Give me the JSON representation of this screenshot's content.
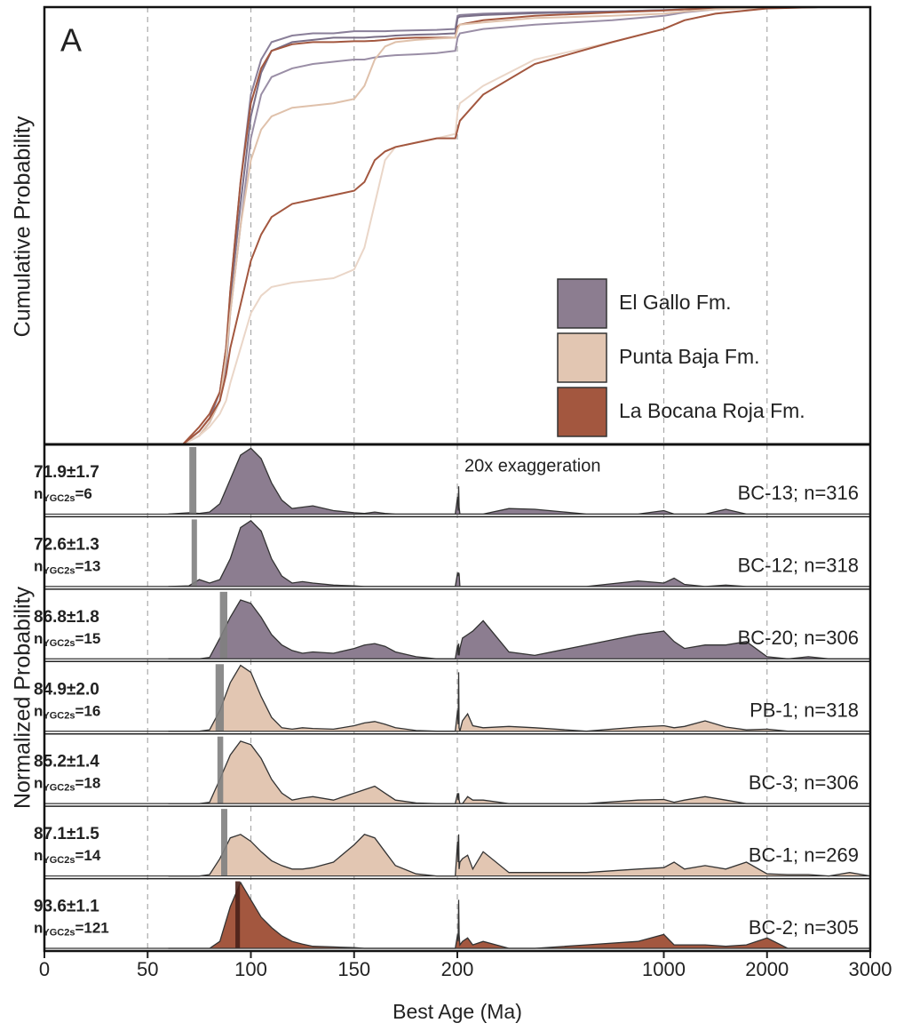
{
  "chart_data": [
    {
      "type": "line",
      "panel_label": "A",
      "ylabel": "Cumulative Probability",
      "xlim": [
        0,
        3000
      ],
      "xticks": [
        0,
        50,
        100,
        150,
        200,
        1000,
        2000,
        3000
      ],
      "x_scale": "piecewise",
      "ylim": [
        0,
        1
      ],
      "grid": true,
      "legend_loc": "lower right",
      "legend": [
        {
          "name": "El Gallo Fm.",
          "color": "#8c7d90"
        },
        {
          "name": "Punta Baja Fm.",
          "color": "#e2c6b2"
        },
        {
          "name": "La Bocana Roja Fm.",
          "color": "#a3573f"
        }
      ],
      "x": [
        67,
        75,
        80,
        85,
        88,
        90,
        95,
        100,
        105,
        110,
        120,
        130,
        140,
        150,
        155,
        160,
        165,
        170,
        180,
        190,
        199,
        201,
        210,
        300,
        500,
        800,
        1000,
        1200,
        1500,
        2000,
        2500,
        3000
      ],
      "curves": [
        {
          "color": "#8a7f99",
          "values": [
            0,
            0.02,
            0.05,
            0.1,
            0.2,
            0.35,
            0.6,
            0.8,
            0.88,
            0.92,
            0.935,
            0.94,
            0.94,
            0.945,
            0.945,
            0.945,
            0.945,
            0.946,
            0.947,
            0.948,
            0.95,
            0.98,
            0.982,
            0.985,
            0.988,
            0.99,
            0.993,
            0.995,
            0.997,
            0.999,
            1,
            1
          ]
        },
        {
          "color": "#7a6f88",
          "values": [
            0,
            0.03,
            0.06,
            0.12,
            0.22,
            0.33,
            0.55,
            0.75,
            0.85,
            0.9,
            0.92,
            0.925,
            0.93,
            0.93,
            0.93,
            0.932,
            0.933,
            0.935,
            0.937,
            0.938,
            0.94,
            0.975,
            0.978,
            0.982,
            0.986,
            0.99,
            0.993,
            0.995,
            0.997,
            0.999,
            1,
            1
          ]
        },
        {
          "color": "#a3573f",
          "values": [
            0,
            0.04,
            0.07,
            0.12,
            0.22,
            0.35,
            0.6,
            0.78,
            0.86,
            0.9,
            0.915,
            0.92,
            0.92,
            0.922,
            0.922,
            0.923,
            0.925,
            0.928,
            0.93,
            0.93,
            0.93,
            0.955,
            0.96,
            0.97,
            0.98,
            0.988,
            0.992,
            0.995,
            0.997,
            0.999,
            1,
            1
          ]
        },
        {
          "color": "#9a8ea6",
          "values": [
            0,
            0.02,
            0.05,
            0.1,
            0.18,
            0.3,
            0.5,
            0.7,
            0.8,
            0.84,
            0.86,
            0.87,
            0.875,
            0.88,
            0.88,
            0.885,
            0.888,
            0.89,
            0.892,
            0.895,
            0.9,
            0.93,
            0.94,
            0.95,
            0.96,
            0.97,
            0.98,
            0.988,
            0.995,
            0.999,
            1,
            1
          ]
        },
        {
          "color": "#dfc1ab",
          "values": [
            0,
            0.02,
            0.05,
            0.1,
            0.2,
            0.3,
            0.5,
            0.65,
            0.72,
            0.75,
            0.77,
            0.775,
            0.78,
            0.79,
            0.82,
            0.88,
            0.91,
            0.92,
            0.925,
            0.928,
            0.93,
            0.95,
            0.96,
            0.965,
            0.975,
            0.98,
            0.985,
            0.99,
            0.995,
            0.999,
            1,
            1
          ]
        },
        {
          "color": "#ead6c8",
          "values": [
            0,
            0.02,
            0.04,
            0.07,
            0.1,
            0.14,
            0.22,
            0.3,
            0.34,
            0.36,
            0.37,
            0.375,
            0.38,
            0.4,
            0.45,
            0.55,
            0.65,
            0.68,
            0.69,
            0.7,
            0.71,
            0.76,
            0.78,
            0.82,
            0.88,
            0.92,
            0.95,
            0.97,
            0.985,
            0.997,
            1,
            1
          ]
        },
        {
          "color": "#a3573f",
          "values": [
            0,
            0.03,
            0.06,
            0.1,
            0.16,
            0.22,
            0.32,
            0.42,
            0.48,
            0.52,
            0.55,
            0.56,
            0.57,
            0.58,
            0.6,
            0.65,
            0.67,
            0.68,
            0.69,
            0.7,
            0.7,
            0.72,
            0.74,
            0.8,
            0.87,
            0.92,
            0.95,
            0.97,
            0.985,
            0.997,
            1,
            1
          ]
        }
      ]
    },
    {
      "type": "ridgeline",
      "ylabel": "Normalized Probability",
      "xlabel": "Best Age (Ma)",
      "annotation": "20x exaggeration",
      "xlim": [
        0,
        3000
      ],
      "xticks": [
        0,
        50,
        100,
        150,
        200,
        1000,
        2000,
        3000
      ],
      "x_scale": "piecewise",
      "grid": true,
      "n_symbol": "n",
      "n_subscript": "YGC2s",
      "x": [
        60,
        70,
        75,
        80,
        85,
        90,
        95,
        100,
        105,
        110,
        115,
        120,
        125,
        130,
        140,
        150,
        155,
        160,
        165,
        170,
        180,
        190,
        199,
        201,
        203,
        205,
        207,
        210,
        220,
        240,
        260,
        300,
        400,
        500,
        700,
        900,
        1000,
        1100,
        1200,
        1400,
        1600,
        1800,
        2000,
        2200,
        2400,
        2600,
        2800,
        3000
      ],
      "samples": [
        {
          "name": "BC-13; n=316",
          "color": "#8c7d90",
          "ygc_label": "71.9±1.7",
          "ygc_age": 71.9,
          "ygc_error": 1.7,
          "bar_color": "#7f7f7f",
          "n_text": "=6",
          "values": [
            0,
            0.02,
            0.01,
            0.03,
            0.15,
            0.5,
            0.85,
            0.95,
            0.8,
            0.45,
            0.2,
            0.08,
            0.1,
            0.12,
            0.05,
            0.02,
            0.01,
            0.03,
            0.01,
            0,
            0,
            0,
            0,
            0.25,
            0.05,
            0.4,
            0.1,
            0,
            0,
            0,
            0,
            0,
            0.08,
            0.07,
            0,
            0,
            0.05,
            0,
            0,
            0,
            0.07,
            0,
            0,
            0,
            0,
            0,
            0,
            0
          ]
        },
        {
          "name": "BC-12; n=318",
          "color": "#8c7d90",
          "ygc_label": "72.6±1.3",
          "ygc_age": 72.6,
          "ygc_error": 1.3,
          "bar_color": "#7f7f7f",
          "n_text": "=13",
          "values": [
            0,
            0.01,
            0.1,
            0.05,
            0.1,
            0.4,
            0.85,
            0.95,
            0.8,
            0.4,
            0.15,
            0.05,
            0.07,
            0.05,
            0.02,
            0.01,
            0,
            0,
            0,
            0,
            0,
            0,
            0,
            0.2,
            0.15,
            0.2,
            0.18,
            0,
            0,
            0,
            0,
            0,
            0,
            0,
            0,
            0.08,
            0.05,
            0.12,
            0.03,
            0,
            0.02,
            0,
            0,
            0,
            0,
            0,
            0,
            0
          ]
        },
        {
          "name": "BC-20; n=306",
          "color": "#8c7d90",
          "ygc_label": "86.8±1.8",
          "ygc_age": 86.8,
          "ygc_error": 1.8,
          "bar_color": "#7f7f7f",
          "n_text": "=15",
          "values": [
            0,
            0,
            0,
            0.02,
            0.3,
            0.6,
            0.85,
            0.8,
            0.6,
            0.35,
            0.2,
            0.12,
            0.08,
            0.1,
            0.08,
            0.15,
            0.2,
            0.22,
            0.18,
            0.1,
            0.03,
            0,
            0,
            0.2,
            0.05,
            0.22,
            0.05,
            0.15,
            0.3,
            0.35,
            0.4,
            0.55,
            0.1,
            0.05,
            0.2,
            0.35,
            0.4,
            0.25,
            0.15,
            0.2,
            0.2,
            0.25,
            0.03,
            0,
            0.03,
            0,
            0,
            0
          ]
        },
        {
          "name": "PB-1; n=318",
          "color": "#e2c6b2",
          "ygc_label": "84.9±2.0",
          "ygc_age": 84.9,
          "ygc_error": 2.0,
          "bar_color": "#7f7f7f",
          "n_text": "=16",
          "values": [
            0,
            0,
            0,
            0.02,
            0.3,
            0.7,
            0.95,
            0.85,
            0.5,
            0.2,
            0.05,
            0.03,
            0.05,
            0.04,
            0.03,
            0.08,
            0.12,
            0.14,
            0.1,
            0.05,
            0.01,
            0,
            0,
            0.3,
            0.1,
            0.85,
            0.05,
            0,
            0.15,
            0.25,
            0.08,
            0.05,
            0.07,
            0.05,
            0,
            0.06,
            0.08,
            0.05,
            0.07,
            0.15,
            0.06,
            0.02,
            0.03,
            0,
            0,
            0,
            0,
            0
          ]
        },
        {
          "name": "BC-3; n=306",
          "color": "#e2c6b2",
          "ygc_label": "85.2±1.4",
          "ygc_age": 85.2,
          "ygc_error": 1.4,
          "bar_color": "#7f7f7f",
          "n_text": "=18",
          "values": [
            0,
            0,
            0,
            0.02,
            0.35,
            0.7,
            0.9,
            0.85,
            0.65,
            0.35,
            0.15,
            0.05,
            0.08,
            0.1,
            0.05,
            0.15,
            0.2,
            0.25,
            0.15,
            0.05,
            0.01,
            0,
            0,
            0.15,
            0.05,
            0.15,
            0.05,
            0,
            0,
            0.1,
            0.05,
            0.05,
            0,
            0,
            0,
            0.05,
            0.06,
            0.02,
            0.05,
            0.1,
            0.05,
            0,
            0,
            0,
            0,
            0,
            0,
            0
          ]
        },
        {
          "name": "BC-1; n=269",
          "color": "#e2c6b2",
          "ygc_label": "87.1±1.5",
          "ygc_age": 87.1,
          "ygc_error": 1.5,
          "bar_color": "#7f7f7f",
          "n_text": "=14",
          "values": [
            0,
            0,
            0,
            0.02,
            0.25,
            0.55,
            0.6,
            0.5,
            0.35,
            0.22,
            0.15,
            0.1,
            0.1,
            0.12,
            0.2,
            0.45,
            0.6,
            0.55,
            0.35,
            0.15,
            0.03,
            0,
            0,
            0.5,
            0.2,
            0.6,
            0.1,
            0.2,
            0.25,
            0.3,
            0.1,
            0.35,
            0.05,
            0.05,
            0.05,
            0.1,
            0.12,
            0.2,
            0.1,
            0.15,
            0.1,
            0.2,
            0.03,
            0.02,
            0.02,
            0,
            0.05,
            0
          ]
        },
        {
          "name": "BC-2; n=305",
          "color": "#a3573f",
          "ygc_label": "93.6±1.1",
          "ygc_age": 93.6,
          "ygc_error": 1.1,
          "bar_color": "#4a2119",
          "n_text": "=121",
          "values": [
            0,
            0,
            0,
            0,
            0.1,
            0.6,
            0.95,
            0.7,
            0.45,
            0.3,
            0.18,
            0.1,
            0.06,
            0.03,
            0.02,
            0.01,
            0,
            0,
            0,
            0,
            0,
            0,
            0,
            0.2,
            0.1,
            0.7,
            0.2,
            0.05,
            0.1,
            0.15,
            0.05,
            0.1,
            0,
            0,
            0.05,
            0.1,
            0.2,
            0.05,
            0.05,
            0.05,
            0.03,
            0.05,
            0.15,
            0,
            0,
            0,
            0,
            0
          ]
        }
      ]
    }
  ]
}
